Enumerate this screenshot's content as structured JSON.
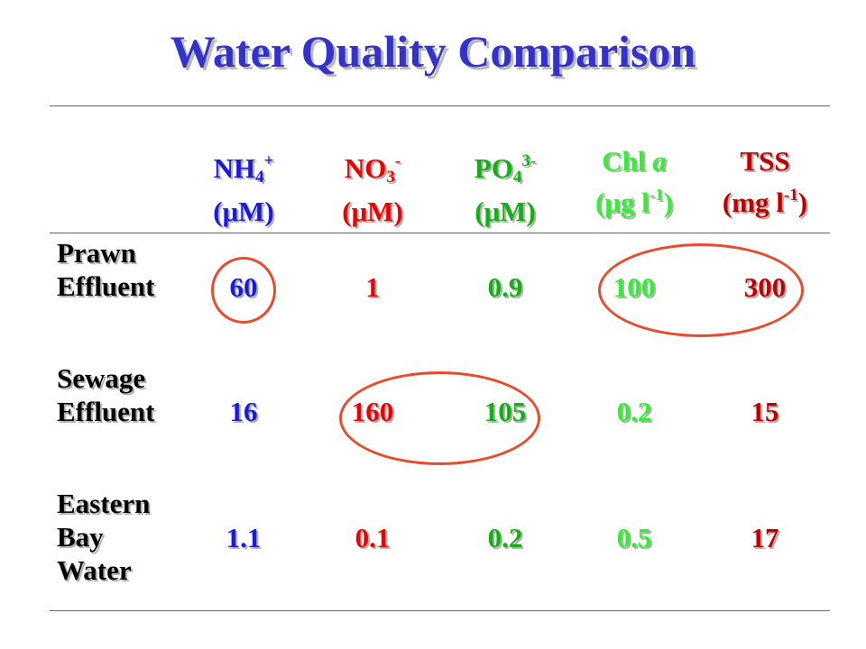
{
  "title": "Water Quality Comparison",
  "columns": [
    {
      "name": "NH",
      "sub": "4",
      "sup": "+",
      "unit": "(μM)",
      "color": "#1a1adf"
    },
    {
      "name": "NO",
      "sub": "3",
      "sup": "-",
      "unit": "(μM)",
      "color": "#ee0000"
    },
    {
      "name": "PO",
      "sub": "4",
      "sup": "3-",
      "unit": "(μM)",
      "color": "#12b012"
    },
    {
      "name": "Chl",
      "italic": "a",
      "unit_pre": "(μg l",
      "unit_sup": "-1",
      "unit_post": ")",
      "color": "#33ee33"
    },
    {
      "name": "TSS",
      "unit_pre": "(mg l",
      "unit_sup": "-1",
      "unit_post": ")",
      "color": "#c00000"
    }
  ],
  "rows": [
    {
      "label_lines": [
        "Prawn",
        "Effluent"
      ],
      "values": [
        "60",
        "1",
        "0.9",
        "100",
        "300"
      ]
    },
    {
      "label_lines": [
        "Sewage",
        "Effluent"
      ],
      "values": [
        "16",
        "160",
        "105",
        "0.2",
        "15"
      ]
    },
    {
      "label_lines": [
        "Eastern",
        "Bay",
        "Water"
      ],
      "values": [
        "1.1",
        "0.1",
        "0.2",
        "0.5",
        "17"
      ]
    }
  ],
  "highlight_color": "#e84a2e"
}
